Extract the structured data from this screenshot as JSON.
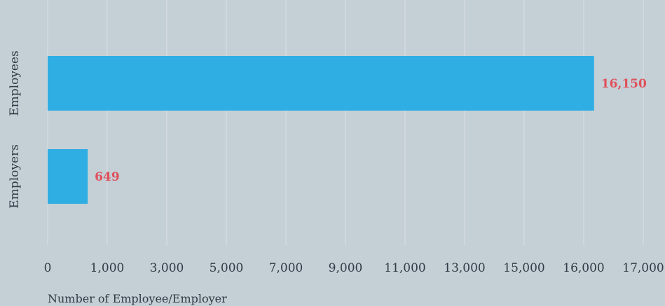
{
  "chart_data": {
    "type": "bar",
    "orientation": "horizontal",
    "categories": [
      "Employees",
      "Employers"
    ],
    "values": [
      16150,
      649
    ],
    "data_labels": [
      "16,150",
      "649"
    ],
    "xlabel": "Number of Employee/Employer",
    "ylabel": "",
    "xticks": [
      "0",
      "1,000",
      "3,000",
      "5,000",
      "7,000",
      "9,000",
      "11,000",
      "13,000",
      "15,000",
      "16,000",
      "17,000"
    ],
    "grid": true,
    "bar_color": "#2faee3",
    "label_color": "#e0505a",
    "background_color": "#c5cfd6"
  }
}
